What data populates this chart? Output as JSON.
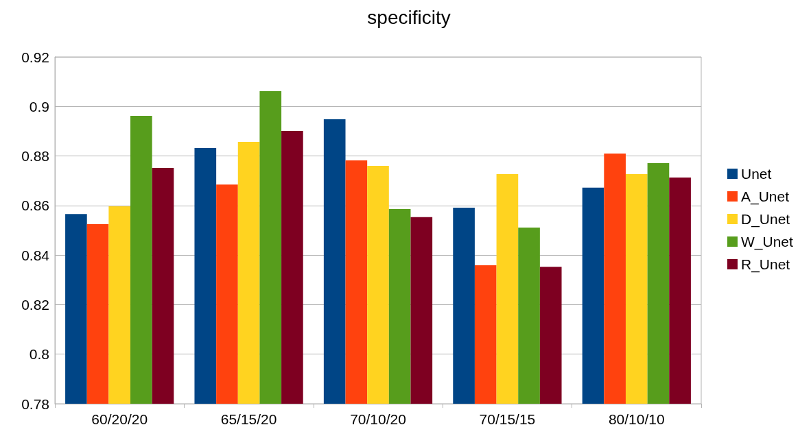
{
  "chart_data": {
    "type": "bar",
    "title": "specificity",
    "categories": [
      "60/20/20",
      "65/15/20",
      "70/10/20",
      "70/15/15",
      "80/10/10"
    ],
    "series": [
      {
        "name": "Unet",
        "color": "#004586",
        "values": [
          0.8566,
          0.8832,
          0.8948,
          0.8591,
          0.8672
        ]
      },
      {
        "name": "A_Unet",
        "color": "#ff420e",
        "values": [
          0.8525,
          0.8685,
          0.8782,
          0.8359,
          0.881
        ]
      },
      {
        "name": "D_Unet",
        "color": "#ffd320",
        "values": [
          0.8597,
          0.8857,
          0.876,
          0.8727,
          0.8727
        ]
      },
      {
        "name": "W_Unet",
        "color": "#579d1c",
        "values": [
          0.8962,
          0.9062,
          0.8586,
          0.8511,
          0.8771
        ]
      },
      {
        "name": "R_Unet",
        "color": "#7e0021",
        "values": [
          0.8752,
          0.8901,
          0.8553,
          0.8353,
          0.8713
        ]
      }
    ],
    "ylim": [
      0.78,
      0.92
    ],
    "yticks": [
      0.78,
      0.8,
      0.82,
      0.84,
      0.86,
      0.88,
      0.9,
      0.92
    ],
    "grid": "y",
    "legend": "right"
  }
}
